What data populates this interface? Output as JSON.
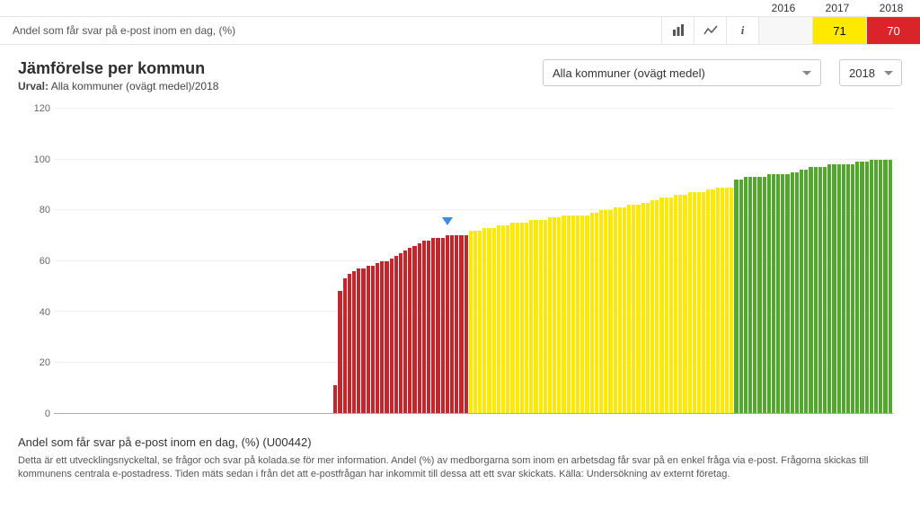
{
  "header": {
    "indicator_label": "Andel som får svar på e-post inom en dag, (%)",
    "years": [
      "2016",
      "2017",
      "2018"
    ],
    "values": [
      {
        "value": "",
        "class": "blank"
      },
      {
        "value": "71",
        "class": "yellow"
      },
      {
        "value": "70",
        "class": "red"
      }
    ]
  },
  "controls": {
    "title": "Jämförelse per kommun",
    "urval_label": "Urval:",
    "urval_value": "Alla kommuner (ovägt medel)/2018",
    "filter_dropdown": "Alla kommuner (ovägt medel)",
    "year_dropdown": "2018"
  },
  "chart": {
    "type": "bar",
    "ylim": [
      0,
      120
    ],
    "yticks": [
      0,
      20,
      40,
      60,
      80,
      100,
      120
    ],
    "yticks_drawgrid": [
      20,
      40,
      60,
      80,
      100,
      120
    ],
    "marker": {
      "index": 84,
      "y": 73
    },
    "colors": {
      "red": "#c4262e",
      "yellow": "#fee903",
      "green": "#52a72d",
      "grid": "#eef0f2",
      "axis": "#aaaaaa",
      "marker": "#3a8dd6",
      "background": "#ffffff"
    },
    "bars": [
      {
        "v": 0,
        "c": "red"
      },
      {
        "v": 0,
        "c": "red"
      },
      {
        "v": 0,
        "c": "red"
      },
      {
        "v": 0,
        "c": "red"
      },
      {
        "v": 0,
        "c": "red"
      },
      {
        "v": 0,
        "c": "red"
      },
      {
        "v": 0,
        "c": "red"
      },
      {
        "v": 0,
        "c": "red"
      },
      {
        "v": 0,
        "c": "red"
      },
      {
        "v": 0,
        "c": "red"
      },
      {
        "v": 0,
        "c": "red"
      },
      {
        "v": 0,
        "c": "red"
      },
      {
        "v": 0,
        "c": "red"
      },
      {
        "v": 0,
        "c": "red"
      },
      {
        "v": 0,
        "c": "red"
      },
      {
        "v": 0,
        "c": "red"
      },
      {
        "v": 0,
        "c": "red"
      },
      {
        "v": 0,
        "c": "red"
      },
      {
        "v": 0,
        "c": "red"
      },
      {
        "v": 0,
        "c": "red"
      },
      {
        "v": 0,
        "c": "red"
      },
      {
        "v": 0,
        "c": "red"
      },
      {
        "v": 0,
        "c": "red"
      },
      {
        "v": 0,
        "c": "red"
      },
      {
        "v": 0,
        "c": "red"
      },
      {
        "v": 0,
        "c": "red"
      },
      {
        "v": 0,
        "c": "red"
      },
      {
        "v": 0,
        "c": "red"
      },
      {
        "v": 0,
        "c": "red"
      },
      {
        "v": 0,
        "c": "red"
      },
      {
        "v": 0,
        "c": "red"
      },
      {
        "v": 0,
        "c": "red"
      },
      {
        "v": 0,
        "c": "red"
      },
      {
        "v": 0,
        "c": "red"
      },
      {
        "v": 0,
        "c": "red"
      },
      {
        "v": 0,
        "c": "red"
      },
      {
        "v": 0,
        "c": "red"
      },
      {
        "v": 0,
        "c": "red"
      },
      {
        "v": 0,
        "c": "red"
      },
      {
        "v": 0,
        "c": "red"
      },
      {
        "v": 0,
        "c": "red"
      },
      {
        "v": 0,
        "c": "red"
      },
      {
        "v": 0,
        "c": "red"
      },
      {
        "v": 0,
        "c": "red"
      },
      {
        "v": 0,
        "c": "red"
      },
      {
        "v": 0,
        "c": "red"
      },
      {
        "v": 0,
        "c": "red"
      },
      {
        "v": 0,
        "c": "red"
      },
      {
        "v": 0,
        "c": "red"
      },
      {
        "v": 0,
        "c": "red"
      },
      {
        "v": 0,
        "c": "red"
      },
      {
        "v": 0,
        "c": "red"
      },
      {
        "v": 0,
        "c": "red"
      },
      {
        "v": 0,
        "c": "red"
      },
      {
        "v": 0,
        "c": "red"
      },
      {
        "v": 0,
        "c": "red"
      },
      {
        "v": 0,
        "c": "red"
      },
      {
        "v": 0,
        "c": "red"
      },
      {
        "v": 0,
        "c": "red"
      },
      {
        "v": 0,
        "c": "red"
      },
      {
        "v": 11,
        "c": "red"
      },
      {
        "v": 48,
        "c": "red"
      },
      {
        "v": 53,
        "c": "red"
      },
      {
        "v": 55,
        "c": "red"
      },
      {
        "v": 56,
        "c": "red"
      },
      {
        "v": 57,
        "c": "red"
      },
      {
        "v": 57,
        "c": "red"
      },
      {
        "v": 58,
        "c": "red"
      },
      {
        "v": 58,
        "c": "red"
      },
      {
        "v": 59,
        "c": "red"
      },
      {
        "v": 60,
        "c": "red"
      },
      {
        "v": 60,
        "c": "red"
      },
      {
        "v": 61,
        "c": "red"
      },
      {
        "v": 62,
        "c": "red"
      },
      {
        "v": 63,
        "c": "red"
      },
      {
        "v": 64,
        "c": "red"
      },
      {
        "v": 65,
        "c": "red"
      },
      {
        "v": 66,
        "c": "red"
      },
      {
        "v": 67,
        "c": "red"
      },
      {
        "v": 68,
        "c": "red"
      },
      {
        "v": 68,
        "c": "red"
      },
      {
        "v": 69,
        "c": "red"
      },
      {
        "v": 69,
        "c": "red"
      },
      {
        "v": 69,
        "c": "red"
      },
      {
        "v": 70,
        "c": "red"
      },
      {
        "v": 70,
        "c": "red"
      },
      {
        "v": 70,
        "c": "red"
      },
      {
        "v": 70,
        "c": "red"
      },
      {
        "v": 70,
        "c": "red"
      },
      {
        "v": 72,
        "c": "yellow"
      },
      {
        "v": 72,
        "c": "yellow"
      },
      {
        "v": 72,
        "c": "yellow"
      },
      {
        "v": 73,
        "c": "yellow"
      },
      {
        "v": 73,
        "c": "yellow"
      },
      {
        "v": 73,
        "c": "yellow"
      },
      {
        "v": 74,
        "c": "yellow"
      },
      {
        "v": 74,
        "c": "yellow"
      },
      {
        "v": 74,
        "c": "yellow"
      },
      {
        "v": 75,
        "c": "yellow"
      },
      {
        "v": 75,
        "c": "yellow"
      },
      {
        "v": 75,
        "c": "yellow"
      },
      {
        "v": 75,
        "c": "yellow"
      },
      {
        "v": 76,
        "c": "yellow"
      },
      {
        "v": 76,
        "c": "yellow"
      },
      {
        "v": 76,
        "c": "yellow"
      },
      {
        "v": 76,
        "c": "yellow"
      },
      {
        "v": 77,
        "c": "yellow"
      },
      {
        "v": 77,
        "c": "yellow"
      },
      {
        "v": 77,
        "c": "yellow"
      },
      {
        "v": 78,
        "c": "yellow"
      },
      {
        "v": 78,
        "c": "yellow"
      },
      {
        "v": 78,
        "c": "yellow"
      },
      {
        "v": 78,
        "c": "yellow"
      },
      {
        "v": 78,
        "c": "yellow"
      },
      {
        "v": 78,
        "c": "yellow"
      },
      {
        "v": 79,
        "c": "yellow"
      },
      {
        "v": 79,
        "c": "yellow"
      },
      {
        "v": 80,
        "c": "yellow"
      },
      {
        "v": 80,
        "c": "yellow"
      },
      {
        "v": 80,
        "c": "yellow"
      },
      {
        "v": 81,
        "c": "yellow"
      },
      {
        "v": 81,
        "c": "yellow"
      },
      {
        "v": 81,
        "c": "yellow"
      },
      {
        "v": 82,
        "c": "yellow"
      },
      {
        "v": 82,
        "c": "yellow"
      },
      {
        "v": 82,
        "c": "yellow"
      },
      {
        "v": 83,
        "c": "yellow"
      },
      {
        "v": 83,
        "c": "yellow"
      },
      {
        "v": 84,
        "c": "yellow"
      },
      {
        "v": 84,
        "c": "yellow"
      },
      {
        "v": 85,
        "c": "yellow"
      },
      {
        "v": 85,
        "c": "yellow"
      },
      {
        "v": 85,
        "c": "yellow"
      },
      {
        "v": 86,
        "c": "yellow"
      },
      {
        "v": 86,
        "c": "yellow"
      },
      {
        "v": 86,
        "c": "yellow"
      },
      {
        "v": 87,
        "c": "yellow"
      },
      {
        "v": 87,
        "c": "yellow"
      },
      {
        "v": 87,
        "c": "yellow"
      },
      {
        "v": 87,
        "c": "yellow"
      },
      {
        "v": 88,
        "c": "yellow"
      },
      {
        "v": 88,
        "c": "yellow"
      },
      {
        "v": 89,
        "c": "yellow"
      },
      {
        "v": 89,
        "c": "yellow"
      },
      {
        "v": 89,
        "c": "yellow"
      },
      {
        "v": 89,
        "c": "yellow"
      },
      {
        "v": 92,
        "c": "green"
      },
      {
        "v": 92,
        "c": "green"
      },
      {
        "v": 93,
        "c": "green"
      },
      {
        "v": 93,
        "c": "green"
      },
      {
        "v": 93,
        "c": "green"
      },
      {
        "v": 93,
        "c": "green"
      },
      {
        "v": 93,
        "c": "green"
      },
      {
        "v": 94,
        "c": "green"
      },
      {
        "v": 94,
        "c": "green"
      },
      {
        "v": 94,
        "c": "green"
      },
      {
        "v": 94,
        "c": "green"
      },
      {
        "v": 94,
        "c": "green"
      },
      {
        "v": 95,
        "c": "green"
      },
      {
        "v": 95,
        "c": "green"
      },
      {
        "v": 96,
        "c": "green"
      },
      {
        "v": 96,
        "c": "green"
      },
      {
        "v": 97,
        "c": "green"
      },
      {
        "v": 97,
        "c": "green"
      },
      {
        "v": 97,
        "c": "green"
      },
      {
        "v": 97,
        "c": "green"
      },
      {
        "v": 98,
        "c": "green"
      },
      {
        "v": 98,
        "c": "green"
      },
      {
        "v": 98,
        "c": "green"
      },
      {
        "v": 98,
        "c": "green"
      },
      {
        "v": 98,
        "c": "green"
      },
      {
        "v": 98,
        "c": "green"
      },
      {
        "v": 99,
        "c": "green"
      },
      {
        "v": 99,
        "c": "green"
      },
      {
        "v": 99,
        "c": "green"
      },
      {
        "v": 100,
        "c": "green"
      },
      {
        "v": 100,
        "c": "green"
      },
      {
        "v": 100,
        "c": "green"
      },
      {
        "v": 100,
        "c": "green"
      },
      {
        "v": 100,
        "c": "green"
      }
    ]
  },
  "footer": {
    "heading": "Andel som får svar på e-post inom en dag, (%) (U00442)",
    "body": "Detta är ett utvecklingsnyckeltal, se frågor och svar på kolada.se för mer information. Andel (%) av medborgarna som inom en arbetsdag får svar på en enkel fråga via e-post. Frågorna skickas till kommunens centrala e-postadress. Tiden mäts sedan i från det att e-postfrågan har inkommit till dessa att ett svar skickats. Källa: Undersökning av externt företag."
  }
}
